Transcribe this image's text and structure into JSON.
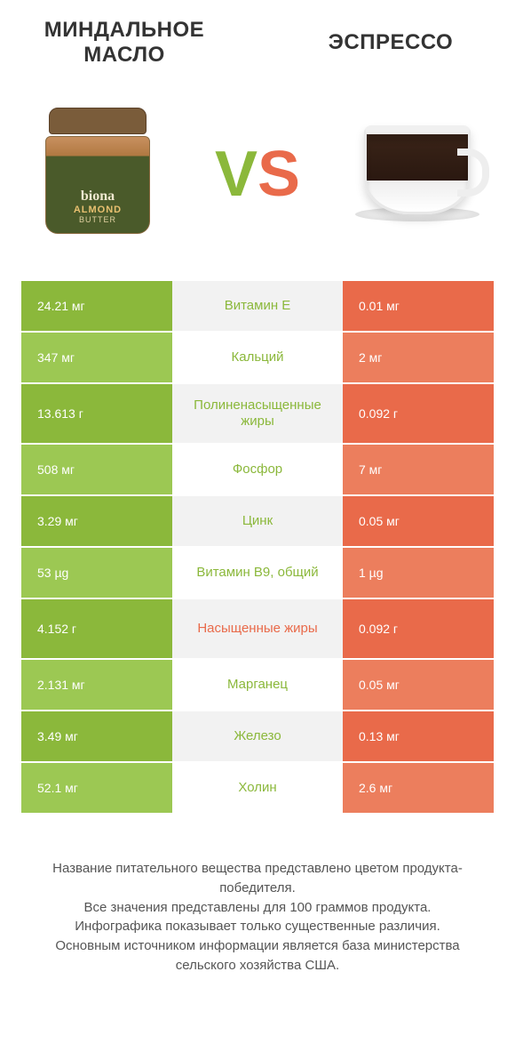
{
  "colors": {
    "left_brand": "#8bb83b",
    "right_brand": "#e96a4a",
    "left_cell_dark": "#8bb83b",
    "left_cell_light": "#9cc853",
    "right_cell_dark": "#e96a4a",
    "right_cell_light": "#ec7e5d",
    "mid_bg_dark": "#f2f2f2",
    "mid_bg_light": "#ffffff",
    "mid_text_left": "#8bb83b",
    "mid_text_right": "#e96a4a",
    "title_text": "#333333",
    "foot_text": "#555555"
  },
  "header": {
    "title_left": "МИНДАЛЬНОЕ МАСЛО",
    "title_right": "ЭСПРЕССО",
    "vs_v": "V",
    "vs_s": "S",
    "jar": {
      "brand": "biona",
      "line": "ALMOND",
      "sub": "BUTTER"
    }
  },
  "rows": [
    {
      "left": "24.21 мг",
      "name": "Витамин E",
      "right": "0.01 мг",
      "winner": "left",
      "tall": false
    },
    {
      "left": "347 мг",
      "name": "Кальций",
      "right": "2 мг",
      "winner": "left",
      "tall": false
    },
    {
      "left": "13.613 г",
      "name": "Полиненасыщенные жиры",
      "right": "0.092 г",
      "winner": "left",
      "tall": true
    },
    {
      "left": "508 мг",
      "name": "Фосфор",
      "right": "7 мг",
      "winner": "left",
      "tall": false
    },
    {
      "left": "3.29 мг",
      "name": "Цинк",
      "right": "0.05 мг",
      "winner": "left",
      "tall": false
    },
    {
      "left": "53 µg",
      "name": "Витамин B9, общий",
      "right": "1 µg",
      "winner": "left",
      "tall": false
    },
    {
      "left": "4.152 г",
      "name": "Насыщенные жиры",
      "right": "0.092 г",
      "winner": "right",
      "tall": true
    },
    {
      "left": "2.131 мг",
      "name": "Марганец",
      "right": "0.05 мг",
      "winner": "left",
      "tall": false
    },
    {
      "left": "3.49 мг",
      "name": "Железо",
      "right": "0.13 мг",
      "winner": "left",
      "tall": false
    },
    {
      "left": "52.1 мг",
      "name": "Холин",
      "right": "2.6 мг",
      "winner": "left",
      "tall": false
    }
  ],
  "footnote": {
    "line1": "Название питательного вещества представлено цветом продукта-победителя.",
    "line2": "Все значения представлены для 100 граммов продукта.",
    "line3": "Инфографика показывает только существенные различия.",
    "line4": "Основным источником информации является база министерства сельского хозяйства США."
  }
}
